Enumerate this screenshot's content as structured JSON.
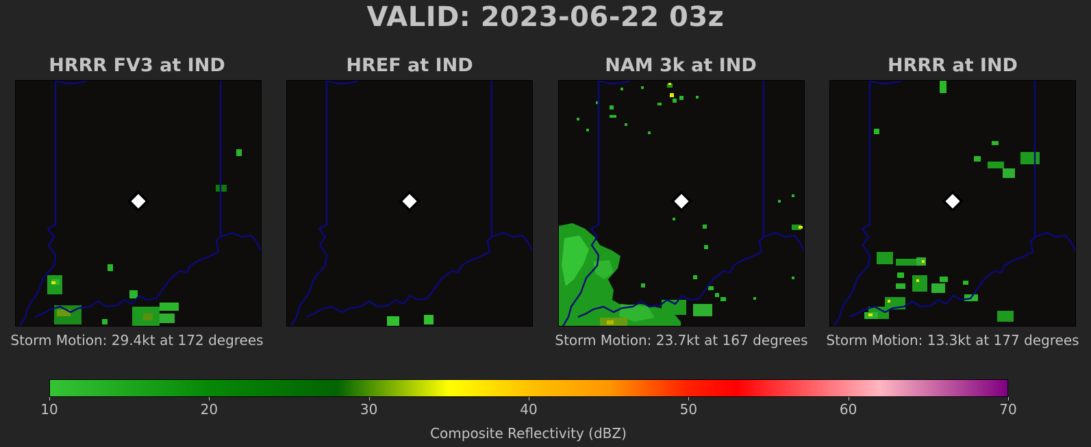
{
  "title": "VALID: 2023-06-22 03z",
  "panels": [
    {
      "title": "HRRR FV3 at IND",
      "storm_motion": "Storm Motion: 29.4kt at 172 degrees"
    },
    {
      "title": "HREF at IND",
      "storm_motion": ""
    },
    {
      "title": "NAM 3k at IND",
      "storm_motion": "Storm Motion: 23.7kt at 167 degrees"
    },
    {
      "title": "HRRR at IND",
      "storm_motion": "Storm Motion: 13.3kt at 177 degrees"
    }
  ],
  "colorbar": {
    "label": "Composite Reflectivity (dBZ)",
    "min": 10,
    "max": 70,
    "ticks": [
      "10",
      "20",
      "30",
      "40",
      "50",
      "60",
      "70"
    ],
    "stops": [
      {
        "value": 10,
        "color": "#35c435"
      },
      {
        "value": 20,
        "color": "#068806"
      },
      {
        "value": 28,
        "color": "#026402"
      },
      {
        "value": 35,
        "color": "#ffff00"
      },
      {
        "value": 40,
        "color": "#ffc200"
      },
      {
        "value": 45,
        "color": "#ff9600"
      },
      {
        "value": 50,
        "color": "#ff2000"
      },
      {
        "value": 53,
        "color": "#ff0000"
      },
      {
        "value": 62,
        "color": "#ffb6c1"
      },
      {
        "value": 70,
        "color": "#800080"
      }
    ]
  },
  "map_colors": {
    "background": "#0f0c0c",
    "border": "#0a0a7a",
    "marker": "#ffffff"
  }
}
